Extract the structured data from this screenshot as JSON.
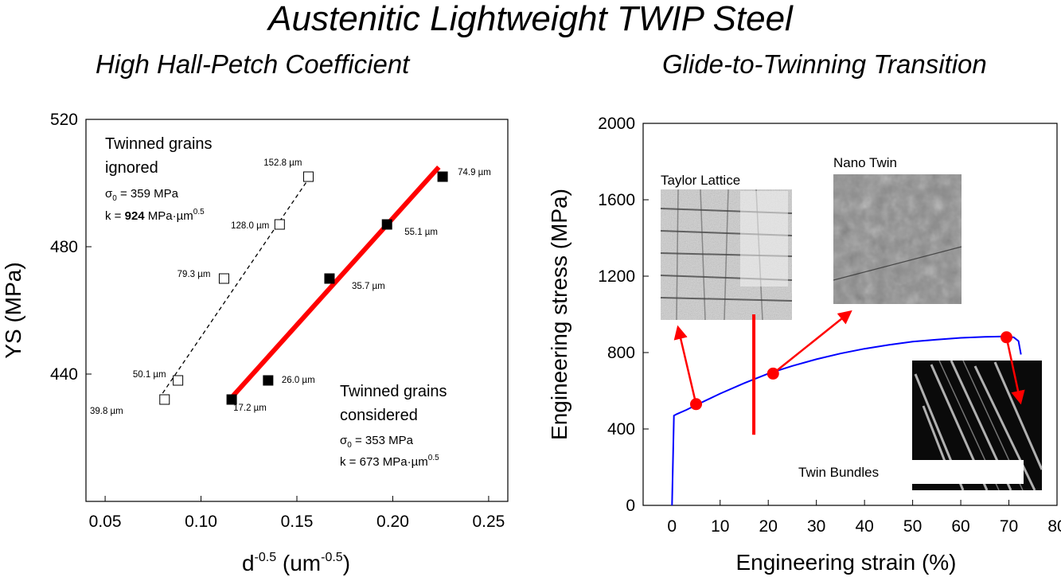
{
  "page": {
    "title": "Austenitic Lightweight TWIP Steel",
    "left_subtitle": "High Hall-Petch Coefficient",
    "right_subtitle": "Glide-to-Twinning Transition"
  },
  "chart_data": [
    {
      "type": "scatter",
      "xlabel": "d-0.5 (um-0.5)",
      "xlabel_parts": {
        "base": "d",
        "exp": "-0.5",
        "unit_open": " (um",
        "unit_exp": "-0.5",
        "unit_close": ")"
      },
      "ylabel": "YS (MPa)",
      "xlim": [
        0.04,
        0.26
      ],
      "ylim": [
        400,
        520
      ],
      "xticks": [
        "0.05",
        "0.10",
        "0.15",
        "0.20",
        "0.25"
      ],
      "yticks": [
        "440",
        "480",
        "520"
      ],
      "series": [
        {
          "name": "Twinned grains ignored",
          "marker": "open-square",
          "points": [
            {
              "x": 0.081,
              "y": 432,
              "label": "39.8 µm"
            },
            {
              "x": 0.088,
              "y": 438,
              "label": "50.1 µm"
            },
            {
              "x": 0.112,
              "y": 470,
              "label": "79.3 µm"
            },
            {
              "x": 0.141,
              "y": 487,
              "label": "128.0 µm"
            },
            {
              "x": 0.156,
              "y": 502,
              "label": "152.8 µm"
            }
          ],
          "fit": {
            "x": [
              0.08,
              0.158
            ],
            "y": [
              434,
              503
            ],
            "style": "dashed"
          }
        },
        {
          "name": "Twinned grains considered",
          "marker": "filled-square",
          "points": [
            {
              "x": 0.116,
              "y": 432,
              "label": "17.2 µm"
            },
            {
              "x": 0.135,
              "y": 438,
              "label": "26.0 µm"
            },
            {
              "x": 0.167,
              "y": 470,
              "label": "35.7 µm"
            },
            {
              "x": 0.197,
              "y": 487,
              "label": "55.1 µm"
            },
            {
              "x": 0.226,
              "y": 502,
              "label": "74.9 µm"
            }
          ],
          "fit": {
            "x": [
              0.115,
              0.224
            ],
            "y": [
              432,
              505
            ],
            "style": "solid",
            "color": "#ff0000"
          }
        }
      ],
      "annotations": {
        "ignored": {
          "line1": "Twinned grains",
          "line2": "ignored",
          "sigma": "σ",
          "sigma_sub": "0",
          "sigma_val": " = 359 MPa",
          "k_pre": "k = ",
          "k_val": "924",
          "k_unit": " MPa·µm",
          "k_exp": "0.5"
        },
        "considered": {
          "line1": "Twinned grains",
          "line2": "considered",
          "sigma": "σ",
          "sigma_sub": "0",
          "sigma_val": " = 353 MPa",
          "k_pre": "k = ",
          "k_val": "673",
          "k_unit": " MPa·µm",
          "k_exp": "0.5"
        }
      }
    },
    {
      "type": "line",
      "xlabel": "Engineering strain (%)",
      "ylabel": "Engineering stress (MPa)",
      "xlim": [
        -6,
        80
      ],
      "ylim": [
        0,
        2000
      ],
      "xticks": [
        "0",
        "10",
        "20",
        "30",
        "40",
        "50",
        "60",
        "70",
        "80"
      ],
      "yticks": [
        "0",
        "400",
        "800",
        "1200",
        "1600",
        "2000"
      ],
      "series": [
        {
          "color": "#0000ff",
          "points": [
            [
              0,
              0
            ],
            [
              0.4,
              470
            ],
            [
              1,
              478
            ],
            [
              3,
              500
            ],
            [
              5,
              525
            ],
            [
              10,
              585
            ],
            [
              15,
              640
            ],
            [
              20,
              690
            ],
            [
              25,
              730
            ],
            [
              30,
              765
            ],
            [
              35,
              795
            ],
            [
              40,
              820
            ],
            [
              45,
              840
            ],
            [
              50,
              857
            ],
            [
              55,
              868
            ],
            [
              60,
              877
            ],
            [
              65,
              882
            ],
            [
              69,
              884
            ],
            [
              71,
              880
            ],
            [
              72,
              860
            ],
            [
              72.5,
              790
            ]
          ]
        }
      ],
      "markers": [
        {
          "x": 5,
          "y": 530
        },
        {
          "x": 21,
          "y": 690
        },
        {
          "x": 69.5,
          "y": 880
        }
      ],
      "transition_strain": 17,
      "insets": {
        "taylor": "Taylor Lattice",
        "nano": "Nano Twin",
        "bundles": "Twin Bundles"
      }
    }
  ]
}
